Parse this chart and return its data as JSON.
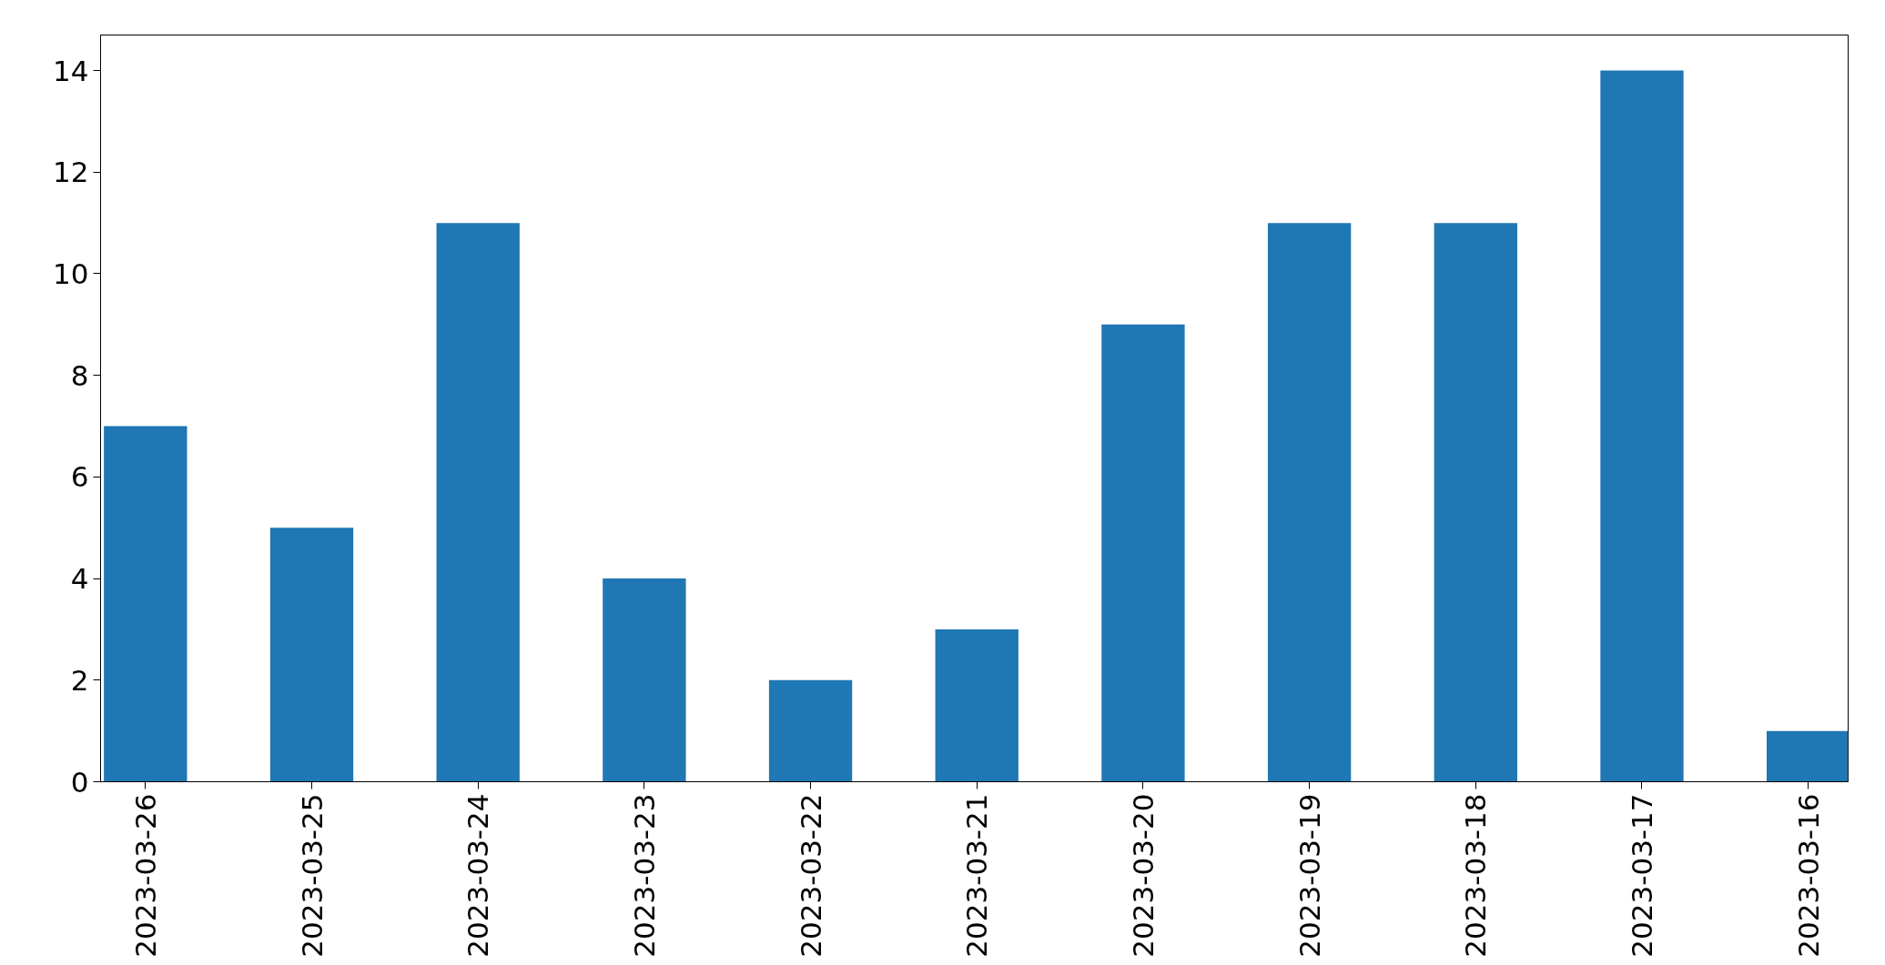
{
  "chart_data": {
    "type": "bar",
    "categories": [
      "2023-03-26",
      "2023-03-25",
      "2023-03-24",
      "2023-03-23",
      "2023-03-22",
      "2023-03-21",
      "2023-03-20",
      "2023-03-19",
      "2023-03-18",
      "2023-03-17",
      "2023-03-16"
    ],
    "values": [
      7,
      5,
      11,
      4,
      2,
      3,
      9,
      11,
      11,
      14,
      1
    ],
    "color": "#1f77b4",
    "ylim": [
      0,
      14.7
    ],
    "yticks": [
      0,
      2,
      4,
      6,
      8,
      10,
      12,
      14
    ],
    "grid": false
  }
}
